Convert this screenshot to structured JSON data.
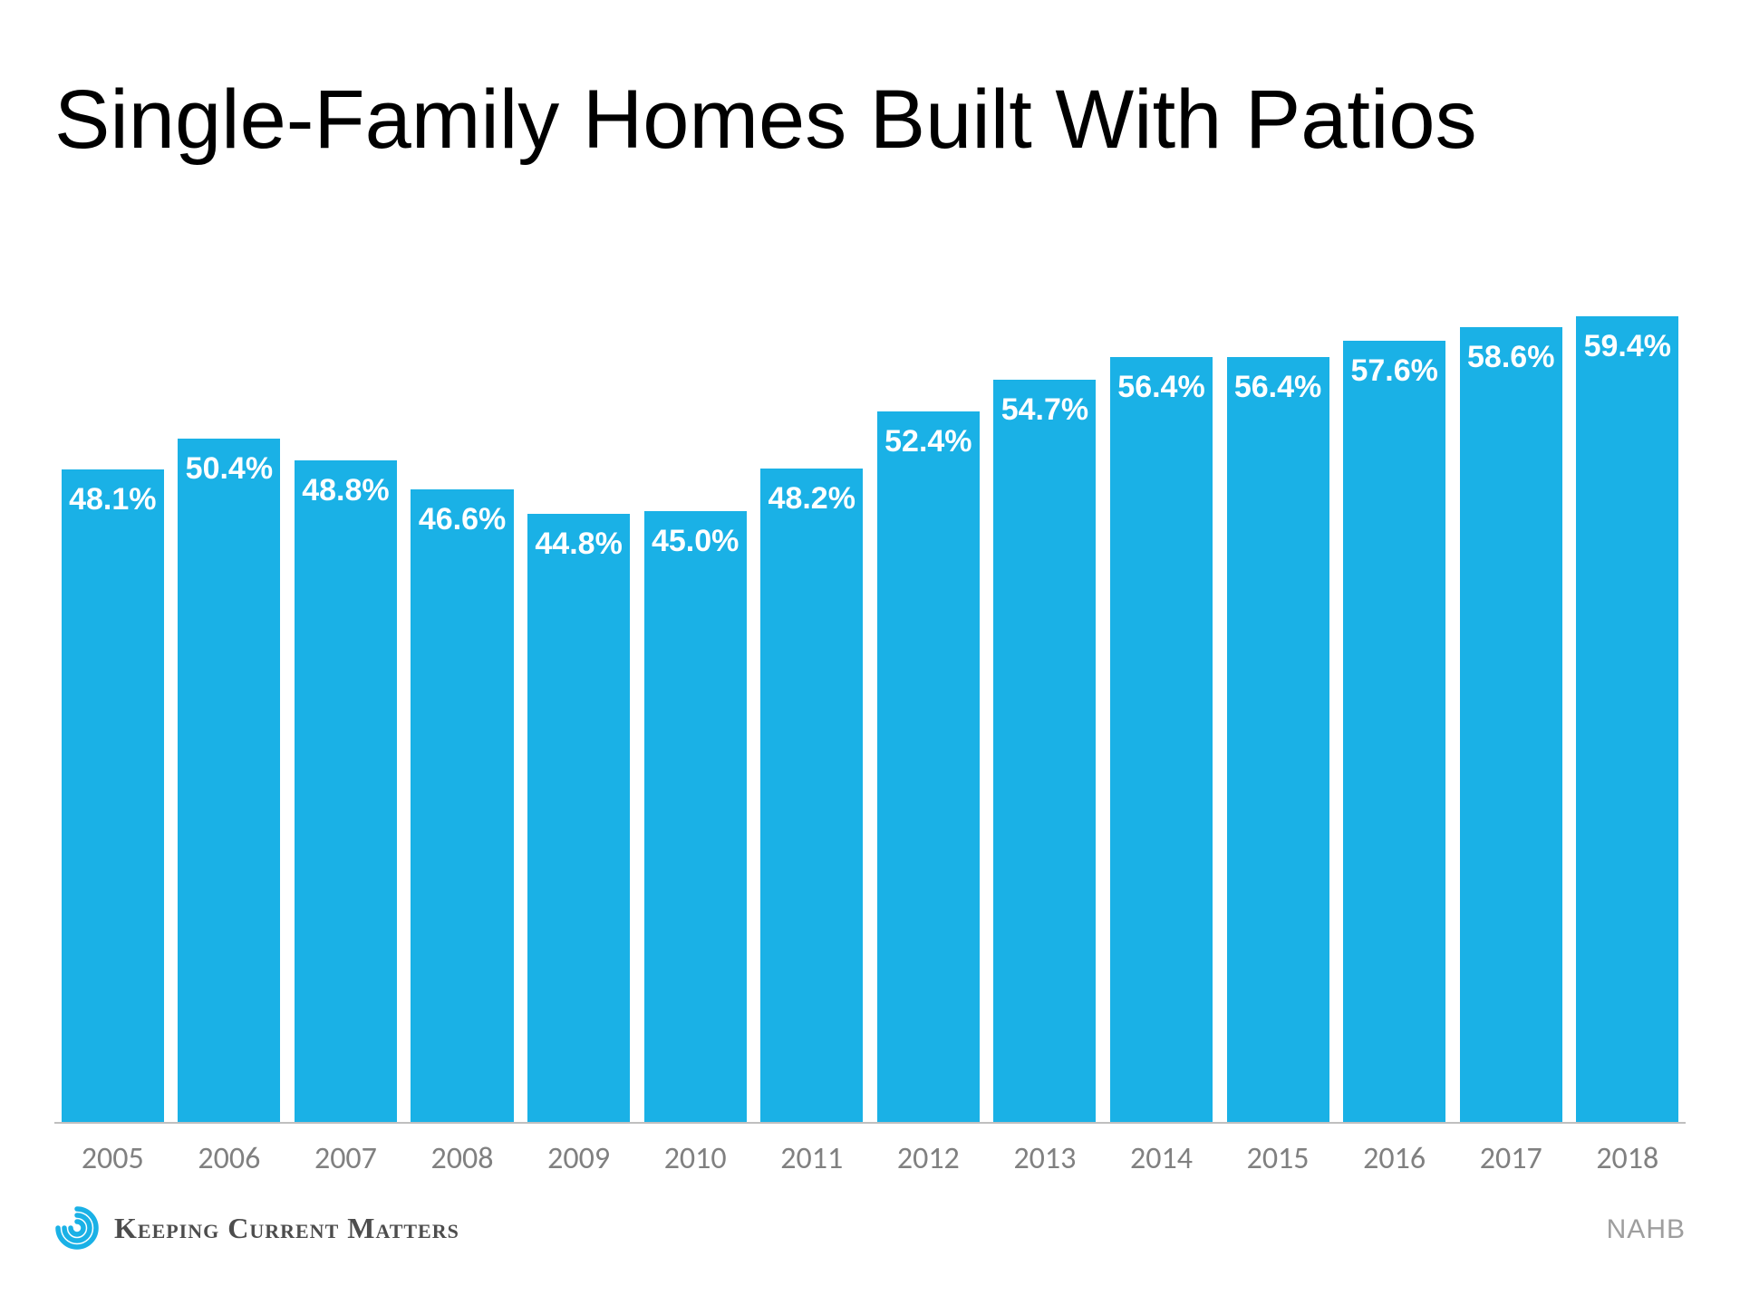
{
  "title": "Single-Family Homes Built With Patios",
  "chart": {
    "type": "bar",
    "categories": [
      "2005",
      "2006",
      "2007",
      "2008",
      "2009",
      "2010",
      "2011",
      "2012",
      "2013",
      "2014",
      "2015",
      "2016",
      "2017",
      "2018"
    ],
    "values": [
      48.1,
      50.4,
      48.8,
      46.6,
      44.8,
      45.0,
      48.2,
      52.4,
      54.7,
      56.4,
      56.4,
      57.6,
      58.6,
      59.4
    ],
    "value_suffix": "%",
    "bar_color": "#1ab1e6",
    "value_label_color": "#ffffff",
    "value_label_fontsize": 34,
    "value_label_fontweight": 700,
    "axis_tick_color": "#808080",
    "axis_tick_fontsize": 34,
    "axis_line_color": "#bfbfbf",
    "background_color": "#ffffff",
    "y_max": 64,
    "bar_width_ratio": 0.88
  },
  "footer": {
    "brand_text": "Keeping Current Matters",
    "brand_color": "#4d4d4d",
    "brand_icon_color": "#1ab1e6",
    "source_text": "NAHB",
    "source_color": "#9e9e9e"
  }
}
